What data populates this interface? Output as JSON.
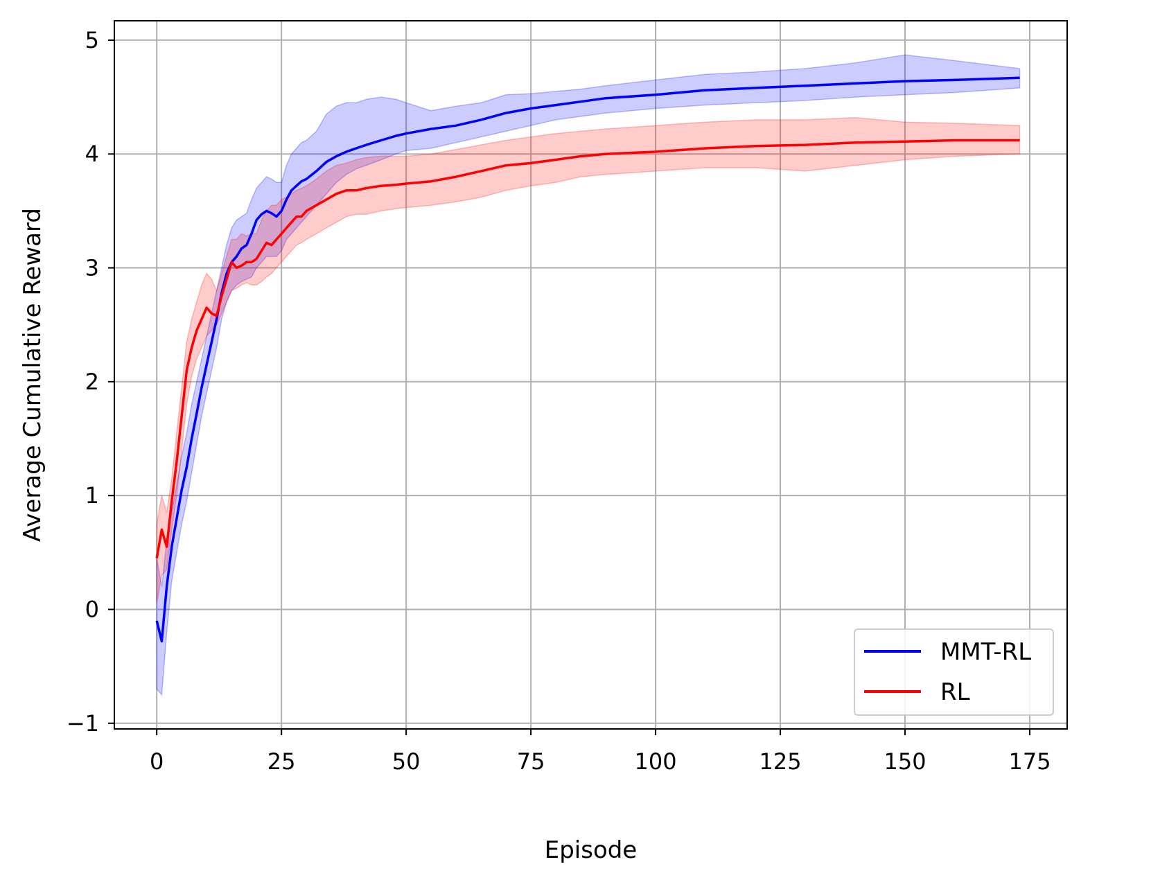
{
  "chart_data": {
    "type": "line",
    "title": "",
    "xlabel": "Episode",
    "ylabel": "Average Cumulative Reward",
    "xlim": [
      -8.5,
      182.5
    ],
    "ylim": [
      -1.05,
      5.17
    ],
    "xticks": [
      0,
      25,
      50,
      75,
      100,
      125,
      150,
      175
    ],
    "xtick_labels": [
      "0",
      "25",
      "50",
      "75",
      "100",
      "125",
      "150",
      "175"
    ],
    "yticks": [
      -1,
      0,
      1,
      2,
      3,
      4,
      5
    ],
    "ytick_labels": [
      "−1",
      "0",
      "1",
      "2",
      "3",
      "4",
      "5"
    ],
    "grid": true,
    "legend_position": "lower-right",
    "series": [
      {
        "name": "MMT-RL",
        "color": "#0000ff",
        "band_color": "#0000ff",
        "x": [
          0,
          1,
          2,
          3,
          4,
          5,
          6,
          7,
          8,
          9,
          10,
          11,
          12,
          13,
          14,
          15,
          16,
          17,
          18,
          19,
          20,
          21,
          22,
          23,
          24,
          25,
          26,
          27,
          28,
          29,
          30,
          32,
          34,
          36,
          38,
          40,
          42,
          45,
          48,
          50,
          55,
          60,
          65,
          70,
          75,
          80,
          85,
          90,
          100,
          110,
          120,
          130,
          140,
          150,
          160,
          173
        ],
        "y": [
          -0.1,
          -0.28,
          0.2,
          0.55,
          0.8,
          1.05,
          1.25,
          1.5,
          1.72,
          1.95,
          2.15,
          2.35,
          2.55,
          2.78,
          2.95,
          3.05,
          3.1,
          3.17,
          3.2,
          3.3,
          3.42,
          3.47,
          3.5,
          3.48,
          3.45,
          3.5,
          3.6,
          3.68,
          3.72,
          3.76,
          3.78,
          3.85,
          3.93,
          3.98,
          4.02,
          4.05,
          4.08,
          4.12,
          4.16,
          4.18,
          4.22,
          4.25,
          4.3,
          4.36,
          4.4,
          4.43,
          4.46,
          4.49,
          4.52,
          4.56,
          4.58,
          4.6,
          4.62,
          4.64,
          4.65,
          4.67
        ],
        "lower": [
          -0.7,
          -0.75,
          -0.2,
          0.25,
          0.5,
          0.75,
          0.95,
          1.2,
          1.45,
          1.7,
          1.9,
          2.1,
          2.3,
          2.55,
          2.7,
          2.8,
          2.85,
          2.88,
          2.9,
          2.92,
          3.0,
          3.05,
          3.1,
          3.1,
          3.1,
          3.15,
          3.25,
          3.3,
          3.35,
          3.4,
          3.45,
          3.55,
          3.65,
          3.75,
          3.82,
          3.87,
          3.9,
          3.95,
          4.0,
          4.03,
          4.05,
          4.1,
          4.15,
          4.2,
          4.25,
          4.3,
          4.33,
          4.36,
          4.4,
          4.43,
          4.45,
          4.47,
          4.5,
          4.52,
          4.54,
          4.58
        ],
        "upper": [
          0.45,
          0.2,
          0.6,
          0.85,
          1.1,
          1.35,
          1.55,
          1.8,
          2.0,
          2.2,
          2.4,
          2.6,
          2.8,
          3.0,
          3.2,
          3.35,
          3.42,
          3.45,
          3.48,
          3.6,
          3.7,
          3.75,
          3.8,
          3.78,
          3.75,
          3.75,
          3.9,
          4.0,
          4.05,
          4.1,
          4.12,
          4.2,
          4.35,
          4.42,
          4.45,
          4.45,
          4.48,
          4.5,
          4.48,
          4.45,
          4.38,
          4.42,
          4.45,
          4.52,
          4.53,
          4.55,
          4.57,
          4.6,
          4.65,
          4.7,
          4.72,
          4.75,
          4.8,
          4.87,
          4.82,
          4.75
        ]
      },
      {
        "name": "RL",
        "color": "#ff0000",
        "band_color": "#ff0000",
        "x": [
          0,
          1,
          2,
          3,
          4,
          5,
          6,
          7,
          8,
          9,
          10,
          11,
          12,
          13,
          14,
          15,
          16,
          17,
          18,
          19,
          20,
          21,
          22,
          23,
          24,
          25,
          26,
          27,
          28,
          29,
          30,
          32,
          34,
          36,
          38,
          40,
          42,
          45,
          48,
          50,
          55,
          60,
          65,
          70,
          75,
          80,
          85,
          90,
          100,
          110,
          120,
          130,
          140,
          150,
          160,
          173
        ],
        "y": [
          0.45,
          0.7,
          0.55,
          0.95,
          1.3,
          1.7,
          2.1,
          2.3,
          2.45,
          2.55,
          2.65,
          2.6,
          2.58,
          2.75,
          2.9,
          3.05,
          3.0,
          3.02,
          3.05,
          3.05,
          3.08,
          3.15,
          3.22,
          3.2,
          3.25,
          3.3,
          3.35,
          3.4,
          3.45,
          3.45,
          3.5,
          3.55,
          3.6,
          3.65,
          3.68,
          3.68,
          3.7,
          3.72,
          3.73,
          3.74,
          3.76,
          3.8,
          3.85,
          3.9,
          3.92,
          3.95,
          3.98,
          4.0,
          4.02,
          4.05,
          4.07,
          4.08,
          4.1,
          4.11,
          4.12,
          4.12
        ],
        "lower": [
          0.05,
          0.3,
          0.35,
          0.7,
          1.0,
          1.4,
          1.8,
          2.05,
          2.2,
          2.3,
          2.4,
          2.45,
          2.5,
          2.6,
          2.7,
          2.8,
          2.82,
          2.85,
          2.87,
          2.85,
          2.85,
          2.88,
          2.92,
          2.95,
          3.0,
          3.05,
          3.1,
          3.15,
          3.2,
          3.22,
          3.25,
          3.3,
          3.35,
          3.4,
          3.45,
          3.47,
          3.47,
          3.5,
          3.52,
          3.53,
          3.55,
          3.58,
          3.62,
          3.68,
          3.72,
          3.75,
          3.8,
          3.82,
          3.85,
          3.88,
          3.88,
          3.85,
          3.9,
          3.95,
          3.98,
          4.0
        ],
        "upper": [
          0.75,
          1.0,
          0.85,
          1.15,
          1.55,
          1.95,
          2.35,
          2.55,
          2.7,
          2.85,
          2.95,
          2.9,
          2.8,
          2.95,
          3.1,
          3.25,
          3.25,
          3.3,
          3.28,
          3.3,
          3.3,
          3.42,
          3.5,
          3.55,
          3.55,
          3.6,
          3.62,
          3.65,
          3.68,
          3.7,
          3.72,
          3.78,
          3.85,
          3.9,
          3.92,
          3.95,
          3.97,
          3.98,
          3.98,
          3.98,
          4.0,
          4.04,
          4.08,
          4.12,
          4.15,
          4.18,
          4.2,
          4.22,
          4.25,
          4.28,
          4.3,
          4.3,
          4.32,
          4.28,
          4.27,
          4.25
        ]
      }
    ]
  }
}
